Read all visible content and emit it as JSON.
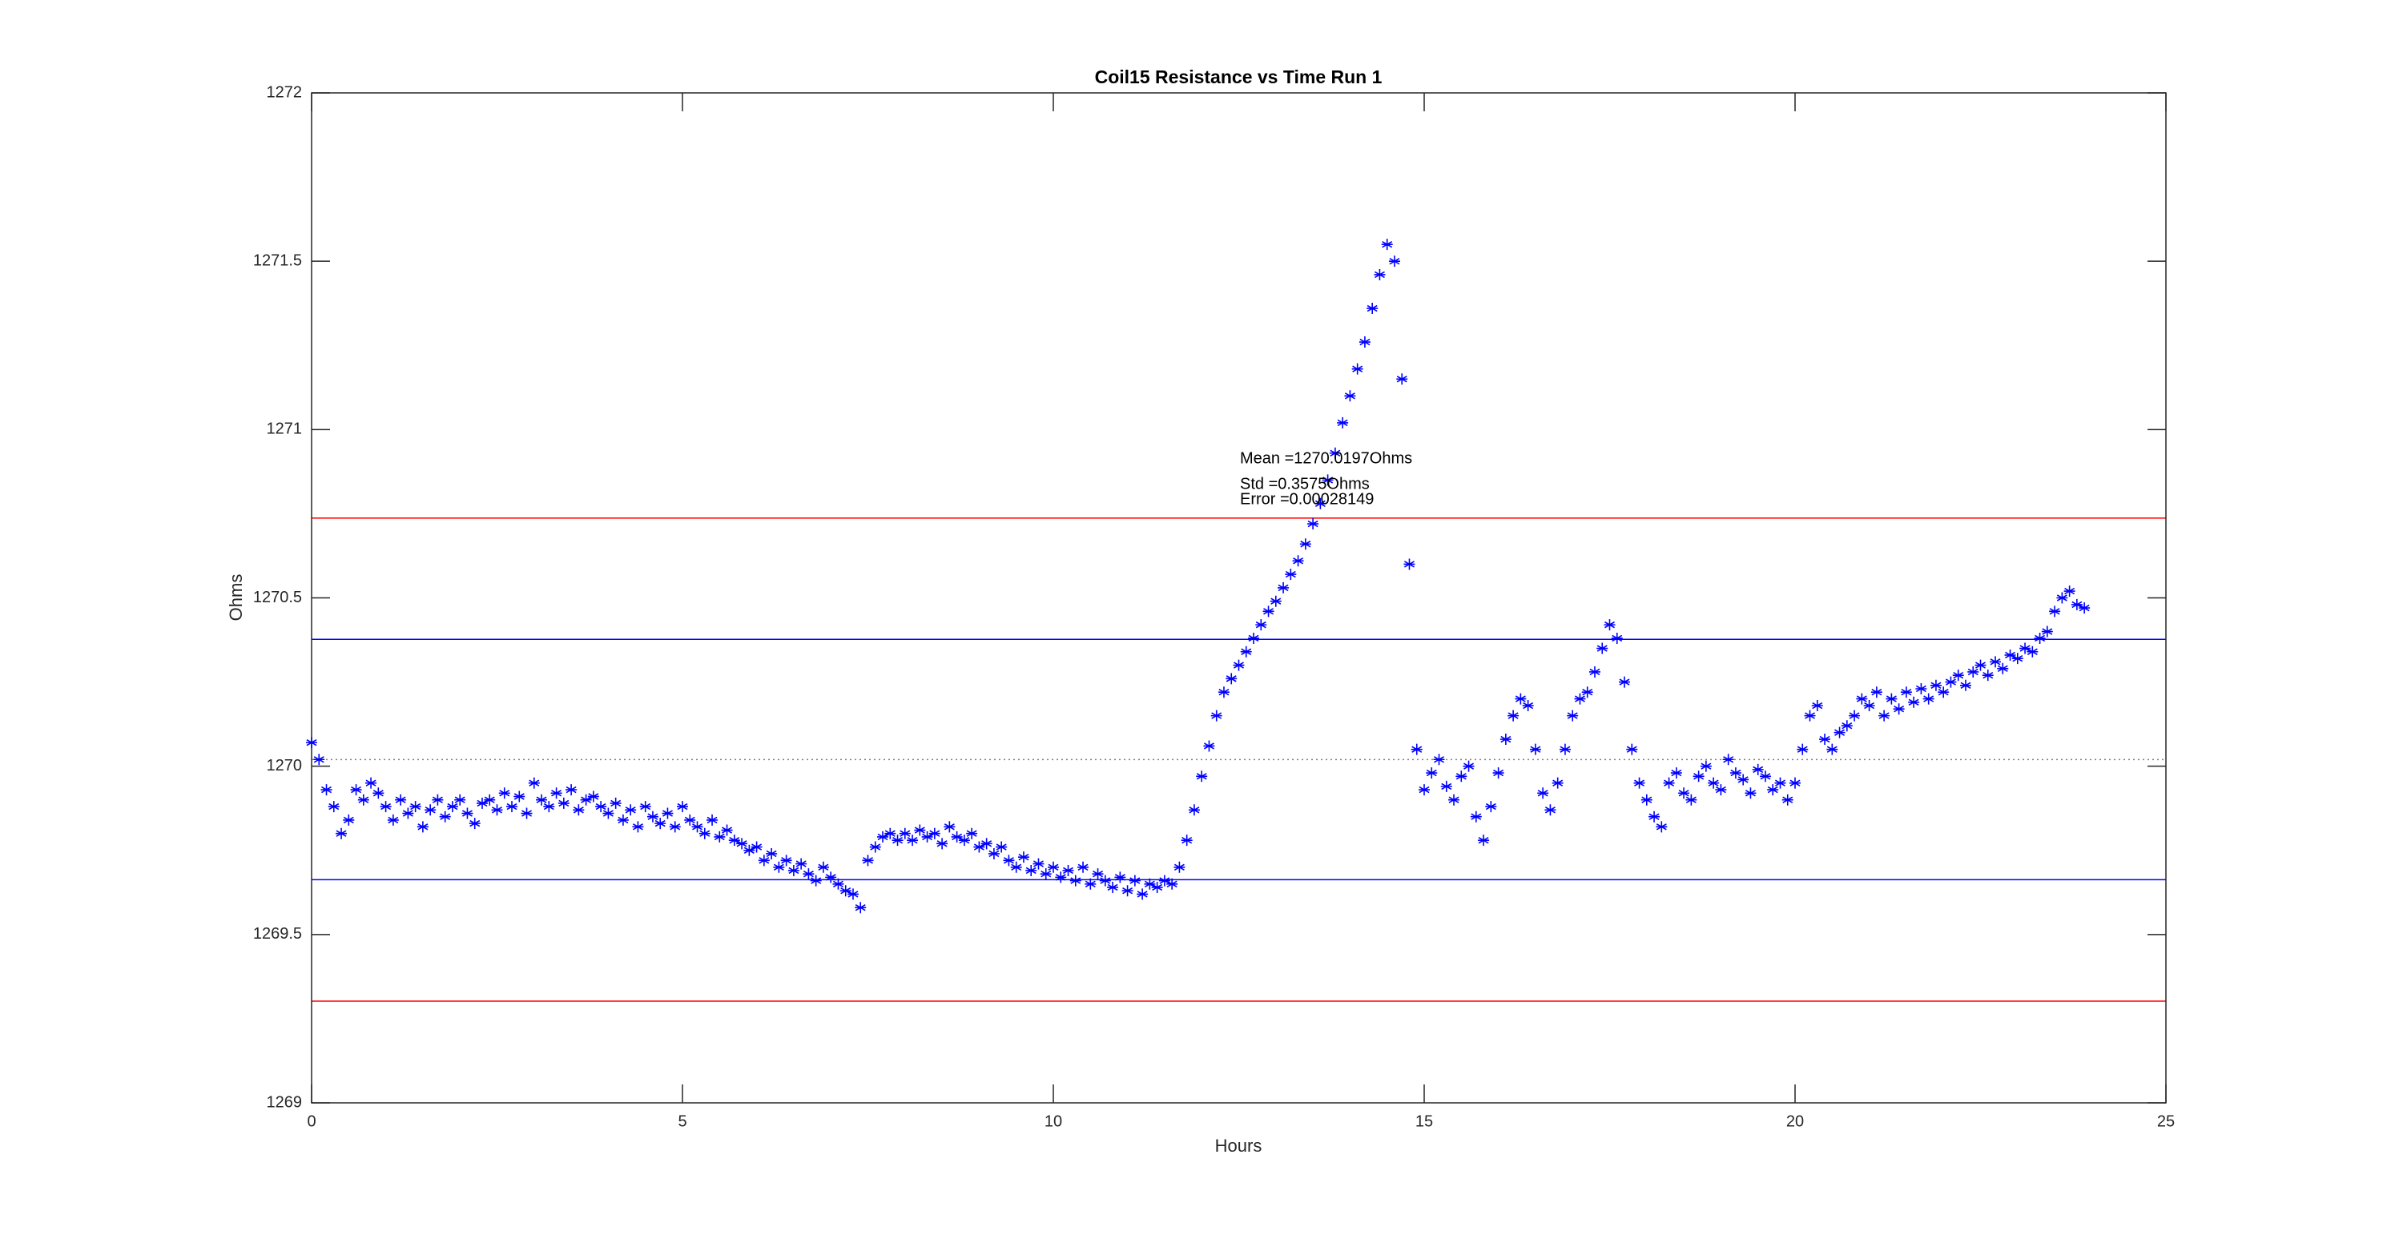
{
  "chart_data": {
    "type": "scatter",
    "title": "Coil15 Resistance vs Time Run 1",
    "x_label": "Hours",
    "y_label": "Ohms",
    "xlim": [
      0,
      25
    ],
    "ylim": [
      1269,
      1272
    ],
    "xticks": [
      0,
      5,
      10,
      15,
      20,
      25
    ],
    "yticks": [
      1269,
      1269.5,
      1270,
      1270.5,
      1271,
      1271.5,
      1272
    ],
    "grid": false,
    "marker": "asterisk",
    "annotations": [
      "Mean =1270.0197Ohms",
      "Std =0.3575Ohms",
      "Error =0.00028149"
    ],
    "reference_lines": [
      {
        "value": 1270.0197,
        "color": "#808080",
        "style": "dotted"
      },
      {
        "value": 1270.377,
        "color": "#0000ff",
        "style": "solid"
      },
      {
        "value": 1269.663,
        "color": "#0000ff",
        "style": "solid"
      },
      {
        "value": 1270.737,
        "color": "#ff0000",
        "style": "solid"
      },
      {
        "value": 1269.302,
        "color": "#ff0000",
        "style": "solid"
      }
    ],
    "series": [
      {
        "color": "#0000ff",
        "x": [
          0,
          0.1,
          0.2,
          0.3,
          0.4,
          0.5,
          0.6,
          0.7,
          0.8,
          0.9,
          1,
          1.1,
          1.2,
          1.3,
          1.4,
          1.5,
          1.6,
          1.7,
          1.8,
          1.9,
          2,
          2.1,
          2.2,
          2.3,
          2.4,
          2.5,
          2.6,
          2.7,
          2.8,
          2.9,
          3,
          3.1,
          3.2,
          3.3,
          3.4,
          3.5,
          3.6,
          3.7,
          3.8,
          3.9,
          4,
          4.1,
          4.2,
          4.3,
          4.4,
          4.5,
          4.6,
          4.7,
          4.8,
          4.9,
          5,
          5.1,
          5.2,
          5.3,
          5.4,
          5.5,
          5.6,
          5.7,
          5.8,
          5.9,
          6,
          6.1,
          6.2,
          6.3,
          6.4,
          6.5,
          6.6,
          6.7,
          6.8,
          6.9,
          7,
          7.1,
          7.2,
          7.3,
          7.4,
          7.5,
          7.6,
          7.7,
          7.8,
          7.9,
          8,
          8.1,
          8.2,
          8.3,
          8.4,
          8.5,
          8.6,
          8.7,
          8.8,
          8.9,
          9,
          9.1,
          9.2,
          9.3,
          9.4,
          9.5,
          9.6,
          9.7,
          9.8,
          9.9,
          10,
          10.1,
          10.2,
          10.3,
          10.4,
          10.5,
          10.6,
          10.7,
          10.8,
          10.9,
          11,
          11.1,
          11.2,
          11.3,
          11.4,
          11.5,
          11.6,
          11.7,
          11.8,
          11.9,
          12,
          12.1,
          12.2,
          12.3,
          12.4,
          12.5,
          12.6,
          12.7,
          12.8,
          12.9,
          13,
          13.1,
          13.2,
          13.3,
          13.4,
          13.5,
          13.6,
          13.7,
          13.8,
          13.9,
          14,
          14.1,
          14.2,
          14.3,
          14.4,
          14.5,
          14.6,
          14.7,
          14.8,
          14.9,
          15,
          15.1,
          15.2,
          15.3,
          15.4,
          15.5,
          15.6,
          15.7,
          15.8,
          15.9,
          16,
          16.1,
          16.2,
          16.3,
          16.4,
          16.5,
          16.6,
          16.7,
          16.8,
          16.9,
          17,
          17.1,
          17.2,
          17.3,
          17.4,
          17.5,
          17.6,
          17.7,
          17.8,
          17.9,
          18,
          18.1,
          18.2,
          18.3,
          18.4,
          18.5,
          18.6,
          18.7,
          18.8,
          18.9,
          19,
          19.1,
          19.2,
          19.3,
          19.4,
          19.5,
          19.6,
          19.7,
          19.8,
          19.9,
          20,
          20.1,
          20.2,
          20.3,
          20.4,
          20.5,
          20.6,
          20.7,
          20.8,
          20.9,
          21,
          21.1,
          21.2,
          21.3,
          21.4,
          21.5,
          21.6,
          21.7,
          21.8,
          21.9,
          22,
          22.1,
          22.2,
          22.3,
          22.4,
          22.5,
          22.6,
          22.7,
          22.8,
          22.9,
          23,
          23.1,
          23.2,
          23.3,
          23.4,
          23.5,
          23.6,
          23.7,
          23.8,
          23.9
        ],
        "values": [
          1270.07,
          1270.02,
          1269.93,
          1269.88,
          1269.8,
          1269.84,
          1269.93,
          1269.9,
          1269.95,
          1269.92,
          1269.88,
          1269.84,
          1269.9,
          1269.86,
          1269.88,
          1269.82,
          1269.87,
          1269.9,
          1269.85,
          1269.88,
          1269.9,
          1269.86,
          1269.83,
          1269.89,
          1269.9,
          1269.87,
          1269.92,
          1269.88,
          1269.91,
          1269.86,
          1269.95,
          1269.9,
          1269.88,
          1269.92,
          1269.89,
          1269.93,
          1269.87,
          1269.9,
          1269.91,
          1269.88,
          1269.86,
          1269.89,
          1269.84,
          1269.87,
          1269.82,
          1269.88,
          1269.85,
          1269.83,
          1269.86,
          1269.82,
          1269.88,
          1269.84,
          1269.82,
          1269.8,
          1269.84,
          1269.79,
          1269.81,
          1269.78,
          1269.77,
          1269.75,
          1269.76,
          1269.72,
          1269.74,
          1269.7,
          1269.72,
          1269.69,
          1269.71,
          1269.68,
          1269.66,
          1269.7,
          1269.67,
          1269.65,
          1269.63,
          1269.62,
          1269.58,
          1269.72,
          1269.76,
          1269.79,
          1269.8,
          1269.78,
          1269.8,
          1269.78,
          1269.81,
          1269.79,
          1269.8,
          1269.77,
          1269.82,
          1269.79,
          1269.78,
          1269.8,
          1269.76,
          1269.77,
          1269.74,
          1269.76,
          1269.72,
          1269.7,
          1269.73,
          1269.69,
          1269.71,
          1269.68,
          1269.7,
          1269.67,
          1269.69,
          1269.66,
          1269.7,
          1269.65,
          1269.68,
          1269.66,
          1269.64,
          1269.67,
          1269.63,
          1269.66,
          1269.62,
          1269.65,
          1269.64,
          1269.66,
          1269.65,
          1269.7,
          1269.78,
          1269.87,
          1269.97,
          1270.06,
          1270.15,
          1270.22,
          1270.26,
          1270.3,
          1270.34,
          1270.38,
          1270.42,
          1270.46,
          1270.49,
          1270.53,
          1270.57,
          1270.61,
          1270.66,
          1270.72,
          1270.78,
          1270.85,
          1270.93,
          1271.02,
          1271.1,
          1271.18,
          1271.26,
          1271.36,
          1271.46,
          1271.55,
          1271.5,
          1271.15,
          1270.6,
          1270.05,
          1269.93,
          1269.98,
          1270.02,
          1269.94,
          1269.9,
          1269.97,
          1270,
          1269.85,
          1269.78,
          1269.88,
          1269.98,
          1270.08,
          1270.15,
          1270.2,
          1270.18,
          1270.05,
          1269.92,
          1269.87,
          1269.95,
          1270.05,
          1270.15,
          1270.2,
          1270.22,
          1270.28,
          1270.35,
          1270.42,
          1270.38,
          1270.25,
          1270.05,
          1269.95,
          1269.9,
          1269.85,
          1269.82,
          1269.95,
          1269.98,
          1269.92,
          1269.9,
          1269.97,
          1270,
          1269.95,
          1269.93,
          1270.02,
          1269.98,
          1269.96,
          1269.92,
          1269.99,
          1269.97,
          1269.93,
          1269.95,
          1269.9,
          1269.95,
          1270.05,
          1270.15,
          1270.18,
          1270.08,
          1270.05,
          1270.1,
          1270.12,
          1270.15,
          1270.2,
          1270.18,
          1270.22,
          1270.15,
          1270.2,
          1270.17,
          1270.22,
          1270.19,
          1270.23,
          1270.2,
          1270.24,
          1270.22,
          1270.25,
          1270.27,
          1270.24,
          1270.28,
          1270.3,
          1270.27,
          1270.31,
          1270.29,
          1270.33,
          1270.32,
          1270.35,
          1270.34,
          1270.38,
          1270.4,
          1270.46,
          1270.5,
          1270.52,
          1270.48,
          1270.47
        ]
      }
    ]
  }
}
